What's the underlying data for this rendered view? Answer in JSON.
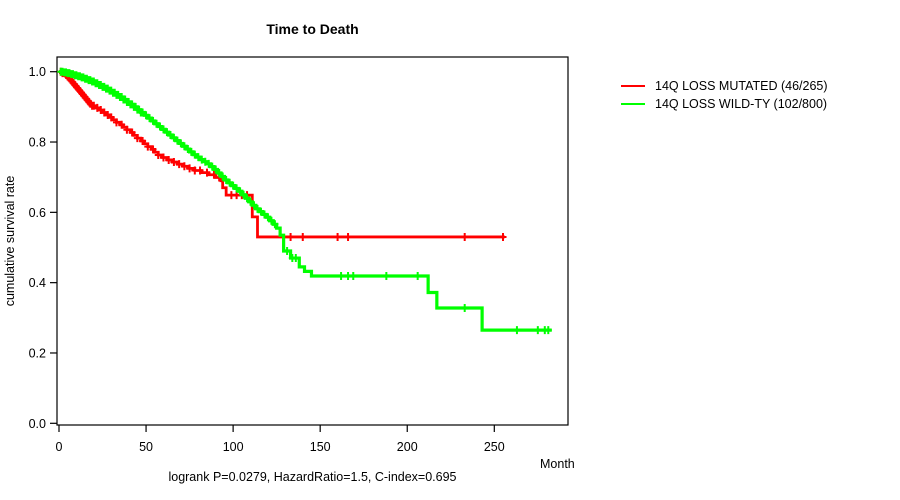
{
  "chart_data": {
    "type": "line",
    "chart_kind": "kaplan_meier_survival_step",
    "title": "Time to Death",
    "xlabel": "Month",
    "ylabel": "cumulative survival rate",
    "footnote": "logrank P=0.0279, HazardRatio=1.5, C-index=0.695",
    "xlim": [
      0,
      293
    ],
    "ylim": [
      0.0,
      1.0
    ],
    "x_ticks": [
      0,
      50,
      100,
      150,
      200,
      250
    ],
    "y_ticks": [
      0.0,
      0.2,
      0.4,
      0.6,
      0.8,
      1.0
    ],
    "grid": false,
    "legend_position": "right",
    "axis_color": "#000000",
    "series": [
      {
        "name": "14Q LOSS MUTATED (46/265)",
        "color": "#ff0000",
        "steps": [
          [
            0,
            1.0
          ],
          [
            2,
            0.996
          ],
          [
            4,
            0.991
          ],
          [
            5,
            0.986
          ],
          [
            6,
            0.981
          ],
          [
            7,
            0.975
          ],
          [
            8,
            0.969
          ],
          [
            9,
            0.963
          ],
          [
            10,
            0.957
          ],
          [
            11,
            0.951
          ],
          [
            12,
            0.945
          ],
          [
            13,
            0.939
          ],
          [
            14,
            0.933
          ],
          [
            15,
            0.927
          ],
          [
            16,
            0.921
          ],
          [
            17,
            0.915
          ],
          [
            18,
            0.909
          ],
          [
            19,
            0.903
          ],
          [
            21,
            0.897
          ],
          [
            23,
            0.891
          ],
          [
            25,
            0.884
          ],
          [
            27,
            0.877
          ],
          [
            29,
            0.87
          ],
          [
            31,
            0.863
          ],
          [
            33,
            0.856
          ],
          [
            35,
            0.849
          ],
          [
            37,
            0.842
          ],
          [
            39,
            0.835
          ],
          [
            41,
            0.827
          ],
          [
            43,
            0.819
          ],
          [
            45,
            0.811
          ],
          [
            47,
            0.803
          ],
          [
            49,
            0.795
          ],
          [
            51,
            0.787
          ],
          [
            53,
            0.779
          ],
          [
            55,
            0.771
          ],
          [
            57,
            0.763
          ],
          [
            59,
            0.756
          ],
          [
            62,
            0.749
          ],
          [
            65,
            0.743
          ],
          [
            68,
            0.737
          ],
          [
            71,
            0.731
          ],
          [
            74,
            0.725
          ],
          [
            78,
            0.719
          ],
          [
            82,
            0.713
          ],
          [
            86,
            0.707
          ],
          [
            90,
            0.699
          ],
          [
            93,
            0.69
          ],
          [
            94,
            0.67
          ],
          [
            96,
            0.649
          ],
          [
            111,
            0.587
          ],
          [
            114,
            0.53
          ],
          [
            256,
            0.53
          ]
        ],
        "censor_times": [
          1,
          2,
          3,
          4,
          5,
          6,
          7,
          8,
          9,
          10,
          11,
          12,
          13,
          14,
          15,
          16,
          17,
          18,
          19,
          20,
          22,
          24,
          26,
          28,
          30,
          33,
          36,
          39,
          42,
          45,
          48,
          51,
          54,
          57,
          60,
          63,
          66,
          69,
          72,
          75,
          78,
          81,
          85,
          89,
          92,
          99,
          102,
          105,
          108,
          133,
          140,
          160,
          166,
          233,
          255
        ]
      },
      {
        "name": "14Q LOSS WILD-TY (102/800)",
        "color": "#00ff00",
        "steps": [
          [
            0,
            1.0
          ],
          [
            3,
            0.998
          ],
          [
            5,
            0.996
          ],
          [
            7,
            0.993
          ],
          [
            9,
            0.99
          ],
          [
            11,
            0.987
          ],
          [
            13,
            0.984
          ],
          [
            15,
            0.98
          ],
          [
            17,
            0.976
          ],
          [
            19,
            0.972
          ],
          [
            21,
            0.967
          ],
          [
            23,
            0.962
          ],
          [
            25,
            0.957
          ],
          [
            27,
            0.952
          ],
          [
            29,
            0.946
          ],
          [
            31,
            0.94
          ],
          [
            33,
            0.934
          ],
          [
            35,
            0.928
          ],
          [
            37,
            0.921
          ],
          [
            39,
            0.914
          ],
          [
            41,
            0.907
          ],
          [
            43,
            0.9
          ],
          [
            45,
            0.892
          ],
          [
            47,
            0.884
          ],
          [
            49,
            0.876
          ],
          [
            51,
            0.868
          ],
          [
            53,
            0.86
          ],
          [
            55,
            0.852
          ],
          [
            57,
            0.844
          ],
          [
            59,
            0.836
          ],
          [
            61,
            0.828
          ],
          [
            63,
            0.82
          ],
          [
            65,
            0.812
          ],
          [
            67,
            0.804
          ],
          [
            69,
            0.796
          ],
          [
            71,
            0.788
          ],
          [
            73,
            0.78
          ],
          [
            75,
            0.772
          ],
          [
            77,
            0.764
          ],
          [
            79,
            0.757
          ],
          [
            81,
            0.75
          ],
          [
            83,
            0.744
          ],
          [
            85,
            0.738
          ],
          [
            87,
            0.73
          ],
          [
            89,
            0.722
          ],
          [
            91,
            0.712
          ],
          [
            93,
            0.702
          ],
          [
            95,
            0.692
          ],
          [
            97,
            0.684
          ],
          [
            99,
            0.676
          ],
          [
            101,
            0.668
          ],
          [
            103,
            0.66
          ],
          [
            105,
            0.65
          ],
          [
            107,
            0.64
          ],
          [
            109,
            0.63
          ],
          [
            111,
            0.62
          ],
          [
            113,
            0.61
          ],
          [
            115,
            0.602
          ],
          [
            117,
            0.594
          ],
          [
            119,
            0.586
          ],
          [
            121,
            0.576
          ],
          [
            123,
            0.566
          ],
          [
            125,
            0.555
          ],
          [
            127,
            0.535
          ],
          [
            129,
            0.49
          ],
          [
            133,
            0.47
          ],
          [
            138,
            0.445
          ],
          [
            141,
            0.432
          ],
          [
            145,
            0.419
          ],
          [
            212,
            0.372
          ],
          [
            217,
            0.328
          ],
          [
            243,
            0.265
          ],
          [
            283,
            0.265
          ]
        ],
        "censor_times": [
          1,
          2,
          3,
          4,
          5,
          6,
          7,
          8,
          9,
          10,
          11,
          12,
          13,
          14,
          15,
          16,
          17,
          18,
          19,
          20,
          21,
          22,
          23,
          24,
          25,
          26,
          27,
          28,
          29,
          30,
          31,
          32,
          33,
          34,
          35,
          36,
          37,
          38,
          39,
          40,
          41,
          42,
          43,
          44,
          45,
          46,
          47,
          48,
          50,
          52,
          54,
          56,
          58,
          60,
          62,
          64,
          66,
          68,
          70,
          72,
          74,
          76,
          78,
          80,
          82,
          84,
          86,
          88,
          90,
          92,
          94,
          96,
          98,
          100,
          102,
          104,
          106,
          108,
          110,
          112,
          114,
          116,
          118,
          120,
          122,
          124,
          131,
          134,
          136,
          162,
          166,
          169,
          188,
          206,
          233,
          263,
          275,
          279,
          281
        ]
      }
    ]
  }
}
